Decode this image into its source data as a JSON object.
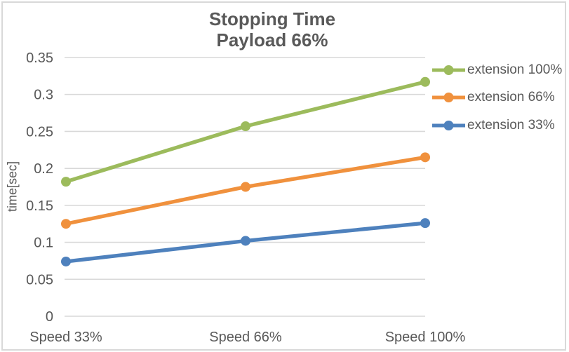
{
  "chart_data": {
    "type": "line",
    "title": "Stopping Time",
    "subtitle": "Payload 66%",
    "ylabel": "time[sec]",
    "xlabel": "",
    "categories": [
      "Speed 33%",
      "Speed 66%",
      "Speed 100%"
    ],
    "series": [
      {
        "name": "extension 100%",
        "color": "#9CBB5C",
        "values": [
          0.182,
          0.257,
          0.317
        ]
      },
      {
        "name": "extension 66%",
        "color": "#F0913D",
        "values": [
          0.125,
          0.175,
          0.215
        ]
      },
      {
        "name": "extension 33%",
        "color": "#4E81BD",
        "values": [
          0.074,
          0.102,
          0.126
        ]
      }
    ],
    "ylim": [
      0,
      0.35
    ],
    "ytick_step": 0.05,
    "grid": true,
    "marker": "circle",
    "legend_position": "right",
    "colors": {
      "grid": "#D9D9D9",
      "text": "#595959",
      "border": "#D9D9D9"
    }
  }
}
